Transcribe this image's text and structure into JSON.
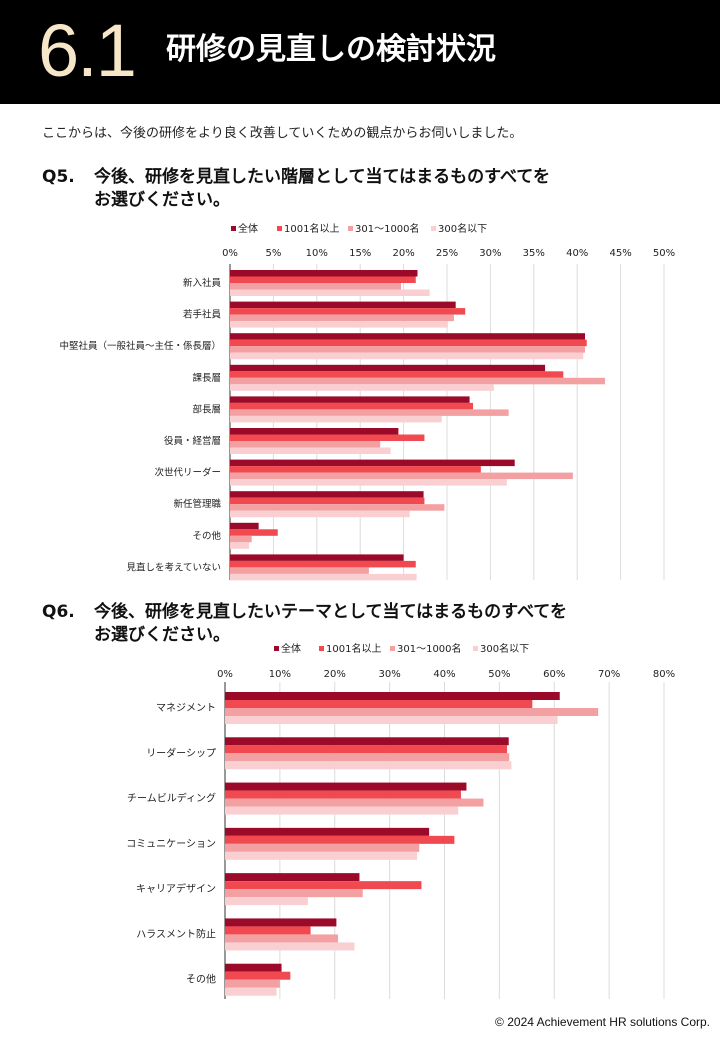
{
  "header": {
    "section_number": "6.1",
    "title": "研修の見直しの検討状況"
  },
  "intro": "ここからは、今後の研修をより良く改善していくための観点からお伺いしました。",
  "q5": {
    "label": "Q5.",
    "line1": "今後、研修を見直したい階層として当てはまるものすべてを",
    "line2": "お選びください。"
  },
  "q6": {
    "label": "Q6.",
    "line1": "今後、研修を見直したいテーマとして当てはまるものすべてを",
    "line2": "お選びください。"
  },
  "footer": "© 2024 Achievement HR solutions Corp.",
  "colors": [
    "#9b0a28",
    "#f04a50",
    "#f3a0a2",
    "#f9cfd2"
  ],
  "chart_data": [
    {
      "type": "bar",
      "orientation": "horizontal",
      "x_unit": "%",
      "xlim": [
        0,
        50
      ],
      "ticks": [
        0,
        5,
        10,
        15,
        20,
        25,
        30,
        35,
        40,
        45,
        50
      ],
      "tick_labels": [
        "0%",
        "5%",
        "10%",
        "15%",
        "20%",
        "25%",
        "30%",
        "35%",
        "40%",
        "45%",
        "50%"
      ],
      "grid": true,
      "legend_position": "top",
      "categories": [
        "新入社員",
        "若手社員",
        "中堅社員（一般社員～主任・係長層）",
        "課長層",
        "部長層",
        "役員・経営層",
        "次世代リーダー",
        "新任管理職",
        "その他",
        "見直しを考えていない"
      ],
      "series": [
        {
          "name": "全体",
          "values": [
            21.6,
            26.0,
            40.9,
            36.3,
            27.6,
            19.4,
            32.8,
            22.3,
            3.3,
            20.0
          ]
        },
        {
          "name": "1001名以上",
          "values": [
            21.4,
            27.1,
            41.1,
            38.4,
            28.0,
            22.4,
            28.9,
            22.4,
            5.5,
            21.4
          ]
        },
        {
          "name": "301～1000名",
          "values": [
            19.7,
            25.8,
            40.9,
            43.2,
            32.1,
            17.3,
            39.5,
            24.7,
            2.5,
            16.0
          ]
        },
        {
          "name": "300名以下",
          "values": [
            23.0,
            25.1,
            40.7,
            30.4,
            24.4,
            18.5,
            31.9,
            20.7,
            2.2,
            21.5
          ]
        }
      ]
    },
    {
      "type": "bar",
      "orientation": "horizontal",
      "x_unit": "%",
      "xlim": [
        0,
        80
      ],
      "ticks": [
        0,
        10,
        20,
        30,
        40,
        50,
        60,
        70,
        80
      ],
      "tick_labels": [
        "0%",
        "10%",
        "20%",
        "30%",
        "40%",
        "50%",
        "60%",
        "70%",
        "80%"
      ],
      "grid": true,
      "legend_position": "top",
      "categories": [
        "マネジメント",
        "リーダーシップ",
        "チームビルディング",
        "コミュニケーション",
        "キャリアデザイン",
        "ハラスメント防止",
        "その他"
      ],
      "series": [
        {
          "name": "全体",
          "values": [
            61.0,
            51.7,
            44.0,
            37.2,
            24.5,
            20.3,
            10.3
          ]
        },
        {
          "name": "1001名以上",
          "values": [
            56.0,
            51.4,
            43.0,
            41.8,
            35.8,
            15.6,
            11.9
          ]
        },
        {
          "name": "301～1000名",
          "values": [
            68.0,
            51.8,
            47.1,
            35.4,
            25.1,
            20.6,
            10.0
          ]
        },
        {
          "name": "300名以下",
          "values": [
            60.6,
            52.2,
            42.5,
            35.0,
            15.1,
            23.6,
            9.4
          ]
        }
      ]
    }
  ]
}
